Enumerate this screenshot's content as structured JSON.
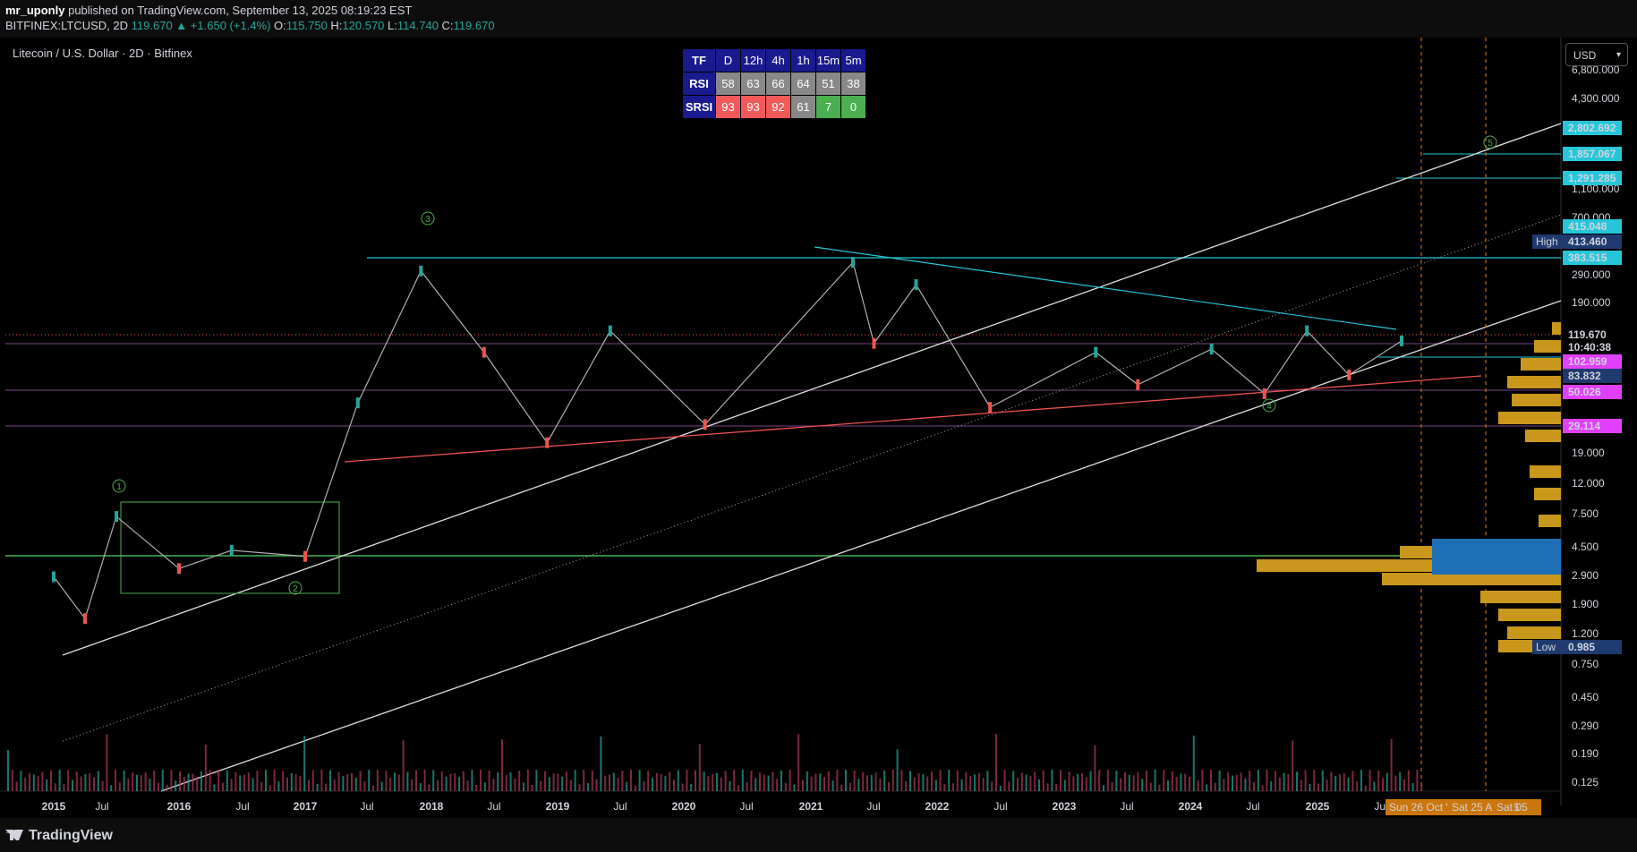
{
  "header": {
    "publisher": "mr_uponly",
    "published_text": "published on TradingView.com, September 13, 2025 08:19:23 EST",
    "symbol": "BITFINEX:LTCUSD, 2D",
    "last": "119.670",
    "change": "+1.650 (+1.4%)",
    "open": "115.750",
    "high": "120.570",
    "low": "114.740",
    "close": "119.670"
  },
  "chart_title": "Litecoin / U.S. Dollar · 2D · Bitfinex",
  "currency_button": "USD",
  "brand": "TradingView",
  "rsi_table": {
    "header": [
      "TF",
      "D",
      "12h",
      "4h",
      "1h",
      "15m",
      "5m"
    ],
    "rows": [
      {
        "label": "RSI",
        "values": [
          "58",
          "63",
          "66",
          "64",
          "51",
          "38"
        ],
        "colors": [
          "gray",
          "gray",
          "gray",
          "gray",
          "gray",
          "gray"
        ]
      },
      {
        "label": "SRSI",
        "values": [
          "93",
          "93",
          "92",
          "61",
          "7",
          "0"
        ],
        "colors": [
          "red",
          "red",
          "red",
          "gray",
          "green",
          "green"
        ]
      }
    ]
  },
  "chart_data": {
    "type": "candlestick",
    "scale": "log",
    "x_ticks": [
      "2015",
      "Jul",
      "2016",
      "Jul",
      "2017",
      "Jul",
      "2018",
      "Jul",
      "2019",
      "Jul",
      "2020",
      "Jul",
      "2021",
      "Jul",
      "2022",
      "Jul",
      "2023",
      "Jul",
      "2024",
      "Jul",
      "2025",
      "Jul"
    ],
    "y_ticks": [
      "6,800.000",
      "4,300.000",
      "2,700.000",
      "1,100.000",
      "700.000",
      "290.000",
      "190.000",
      "19.000",
      "12.000",
      "7.500",
      "4.500",
      "2.900",
      "1.900",
      "1.200",
      "0.750",
      "0.450",
      "0.290",
      "0.190",
      "0.125"
    ],
    "price_labels": [
      {
        "text": "2,802.692",
        "color": "#26c6da"
      },
      {
        "text": "1,857.067",
        "color": "#26c6da"
      },
      {
        "text": "1,291.285",
        "color": "#26c6da"
      },
      {
        "text": "415.048",
        "color": "#26c6da"
      },
      {
        "text": "413.460",
        "color": "#1e3a6e",
        "tag": "High"
      },
      {
        "text": "383.515",
        "color": "#26c6da"
      },
      {
        "text": "119.670",
        "color": "#000000"
      },
      {
        "text": "10:40:38",
        "color": "#000000"
      },
      {
        "text": "102.959",
        "color": "#e040fb"
      },
      {
        "text": "83.832",
        "color": "#1e3a6e"
      },
      {
        "text": "50.026",
        "color": "#e040fb"
      },
      {
        "text": "29.114",
        "color": "#e040fb"
      },
      {
        "text": "0.985",
        "color": "#1e3a6e",
        "tag": "Low"
      }
    ],
    "wave_labels": [
      "1",
      "2",
      "3",
      "4",
      "5"
    ],
    "future_time_labels": [
      "Sun 26 Oct '25",
      "Sat 25 Apr '26",
      "Sat 05"
    ],
    "series": [
      {
        "name": "LTCUSD",
        "points": [
          {
            "x": "2015-01",
            "y": 2.9
          },
          {
            "x": "2015-04",
            "y": 1.5
          },
          {
            "x": "2015-07",
            "y": 7.5
          },
          {
            "x": "2016-01",
            "y": 3.3
          },
          {
            "x": "2016-06",
            "y": 4.4
          },
          {
            "x": "2017-01",
            "y": 4.0
          },
          {
            "x": "2017-06",
            "y": 45
          },
          {
            "x": "2017-12",
            "y": 360
          },
          {
            "x": "2018-06",
            "y": 100
          },
          {
            "x": "2018-12",
            "y": 24
          },
          {
            "x": "2019-06",
            "y": 140
          },
          {
            "x": "2020-03",
            "y": 32
          },
          {
            "x": "2021-05",
            "y": 413
          },
          {
            "x": "2021-07",
            "y": 115
          },
          {
            "x": "2021-11",
            "y": 290
          },
          {
            "x": "2022-06",
            "y": 42
          },
          {
            "x": "2023-04",
            "y": 100
          },
          {
            "x": "2023-08",
            "y": 60
          },
          {
            "x": "2024-03",
            "y": 105
          },
          {
            "x": "2024-08",
            "y": 52
          },
          {
            "x": "2024-12",
            "y": 140
          },
          {
            "x": "2025-04",
            "y": 70
          },
          {
            "x": "2025-09",
            "y": 119.67
          }
        ]
      }
    ]
  }
}
